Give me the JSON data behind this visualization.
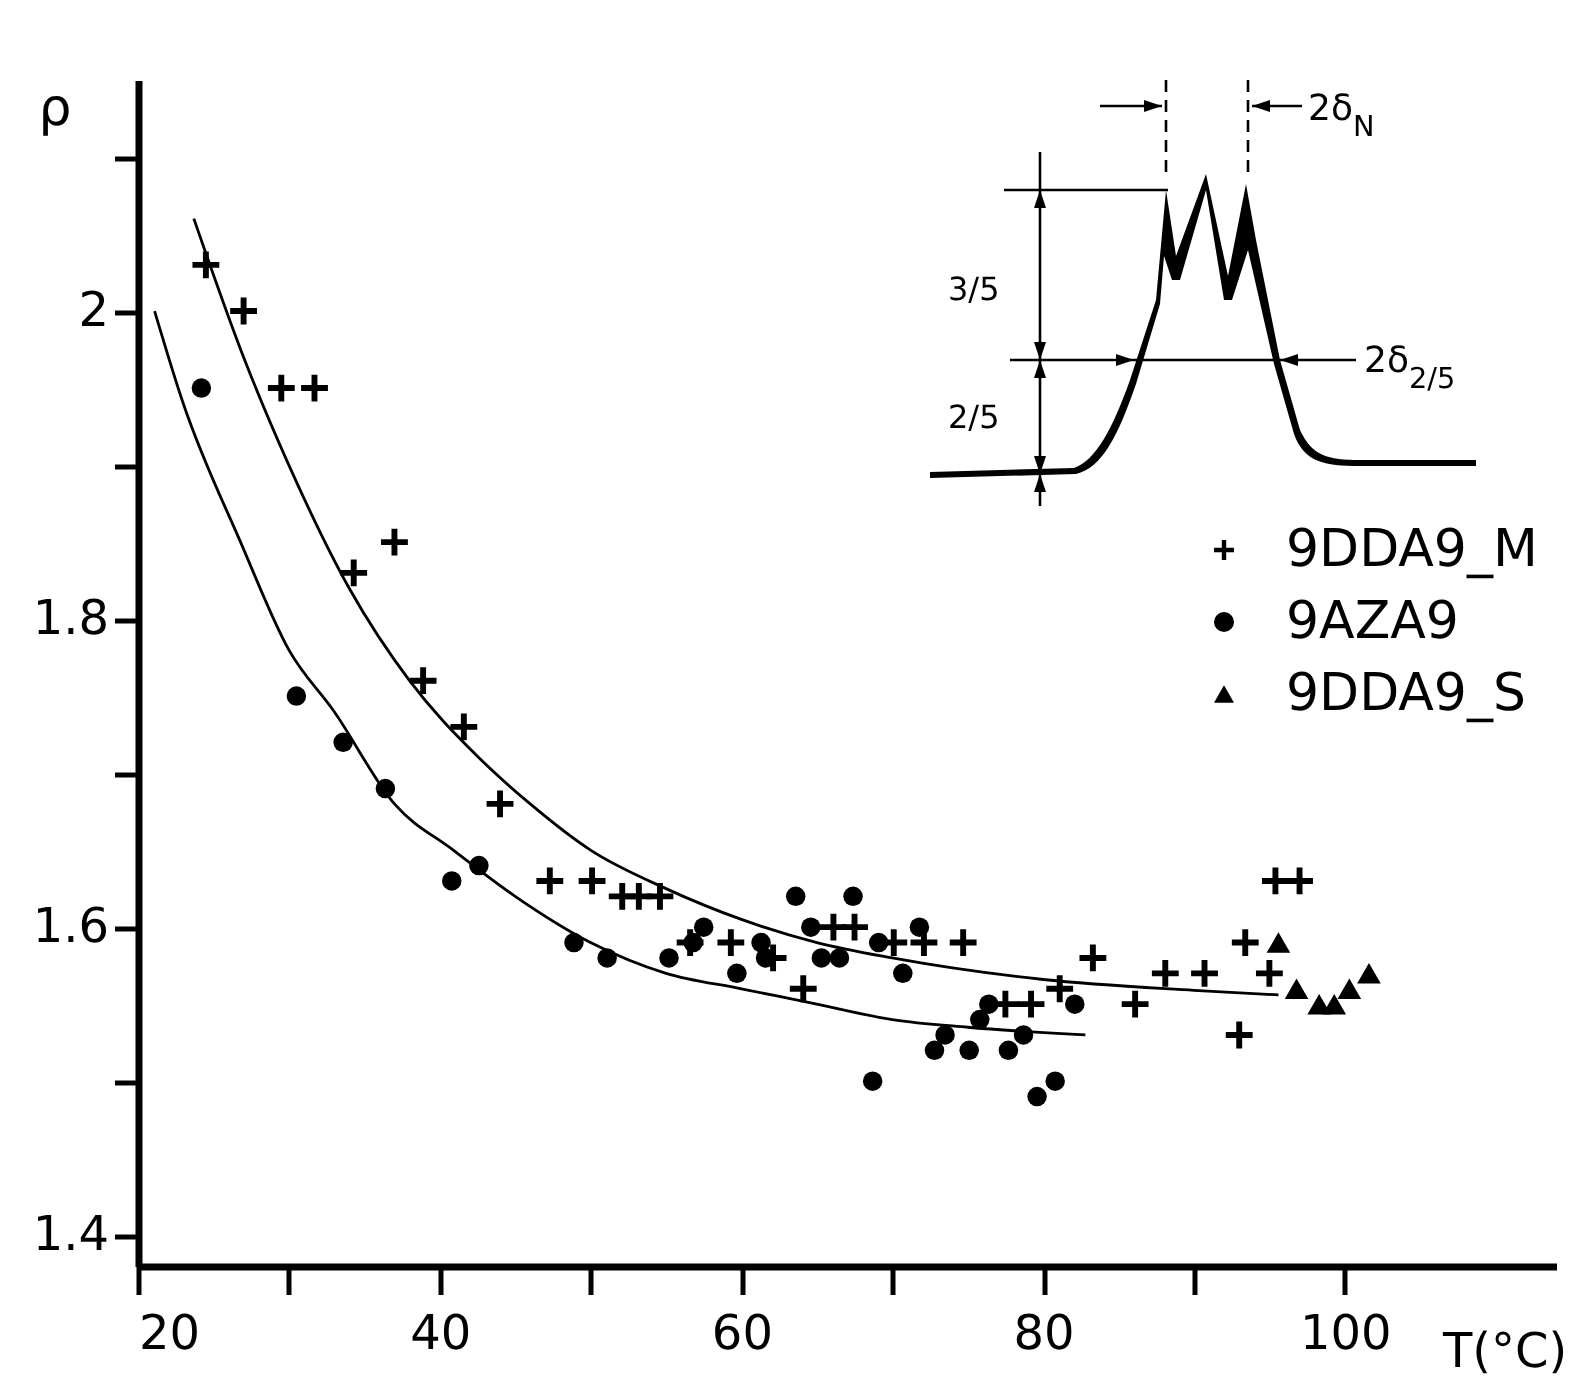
{
  "chart_data": {
    "type": "scatter",
    "xlabel": "T(°C)",
    "ylabel": "ρ",
    "xlim": [
      20,
      114
    ],
    "ylim": [
      1.38,
      2.15
    ],
    "xticks": [
      20,
      {
        "value": 30,
        "label": null
      },
      40,
      {
        "value": 50,
        "label": null
      },
      60,
      {
        "value": 70,
        "label": null
      },
      80,
      {
        "value": 90,
        "label": null
      },
      100
    ],
    "yticks": [
      1.4,
      {
        "value": 1.5,
        "label": null
      },
      1.6,
      {
        "value": 1.7,
        "label": null
      },
      1.8,
      {
        "value": 1.9,
        "label": null
      },
      2.0,
      {
        "value": 2.1,
        "label": null
      }
    ],
    "legend": "right",
    "grid": false,
    "annotations": [
      "2δ$_{N}$",
      "3/5",
      "2/5",
      "2δ$_{2/5}$"
    ],
    "series": [
      {
        "name": "9DDA9_M",
        "marker": "cross",
        "color": "#000000",
        "x": [
          24.5,
          27.0,
          29.5,
          31.7,
          34.3,
          37.0,
          38.9,
          41.6,
          44.0,
          47.3,
          50.1,
          52.1,
          53.2,
          54.6,
          56.6,
          59.3,
          62.1,
          64.1,
          66.1,
          67.5,
          70.1,
          72.1,
          74.7,
          77.5,
          79.2,
          81.1,
          83.3,
          86.1,
          88.1,
          90.7,
          93.0,
          93.4,
          95.0,
          95.4,
          97.0
        ],
        "values": [
          2.03,
          2.0,
          1.95,
          1.95,
          1.83,
          1.85,
          1.76,
          1.73,
          1.68,
          1.63,
          1.63,
          1.62,
          1.62,
          1.62,
          1.59,
          1.59,
          1.58,
          1.56,
          1.6,
          1.6,
          1.59,
          1.59,
          1.59,
          1.55,
          1.55,
          1.56,
          1.58,
          1.55,
          1.57,
          1.57,
          1.53,
          1.59,
          1.57,
          1.63,
          1.63
        ]
      },
      {
        "name": "9AZA9",
        "marker": "circle",
        "color": "#000000",
        "x": [
          24.2,
          30.5,
          33.6,
          36.4,
          40.8,
          42.6,
          48.9,
          51.1,
          55.2,
          56.8,
          57.5,
          59.7,
          61.3,
          61.6,
          63.6,
          64.6,
          65.3,
          66.5,
          67.4,
          68.7,
          69.1,
          70.7,
          71.8,
          72.8,
          73.5,
          75.1,
          75.8,
          76.4,
          77.7,
          78.7,
          79.6,
          80.8,
          82.1
        ],
        "values": [
          1.95,
          1.75,
          1.72,
          1.69,
          1.63,
          1.64,
          1.59,
          1.58,
          1.58,
          1.59,
          1.6,
          1.57,
          1.59,
          1.58,
          1.62,
          1.6,
          1.58,
          1.58,
          1.62,
          1.5,
          1.59,
          1.57,
          1.6,
          1.52,
          1.53,
          1.52,
          1.54,
          1.55,
          1.52,
          1.53,
          1.49,
          1.5,
          1.55
        ]
      },
      {
        "name": "9DDA9_S",
        "marker": "triangle",
        "color": "#000000",
        "x": [
          95.6,
          96.8,
          98.3,
          99.3,
          100.3,
          101.6
        ],
        "values": [
          1.59,
          1.56,
          1.55,
          1.55,
          1.56,
          1.57
        ]
      },
      {
        "type": "line",
        "color": "#000000",
        "x": [
          23.7,
          27,
          30,
          34,
          38,
          42.6,
          46,
          50,
          55,
          60,
          65,
          70,
          80,
          90,
          95.6
        ],
        "values": [
          2.06,
          1.97,
          1.9,
          1.82,
          1.76,
          1.71,
          1.68,
          1.65,
          1.625,
          1.605,
          1.59,
          1.58,
          1.566,
          1.559,
          1.556
        ]
      },
      {
        "type": "line",
        "color": "#000000",
        "x": [
          21.1,
          23,
          26.8,
          30,
          33,
          37,
          40.9,
          45,
          50,
          55,
          60,
          65,
          70,
          75,
          82.8
        ],
        "values": [
          2.0,
          1.94,
          1.85,
          1.78,
          1.74,
          1.68,
          1.65,
          1.62,
          1.59,
          1.57,
          1.56,
          1.55,
          1.54,
          1.535,
          1.53
        ]
      }
    ]
  }
}
